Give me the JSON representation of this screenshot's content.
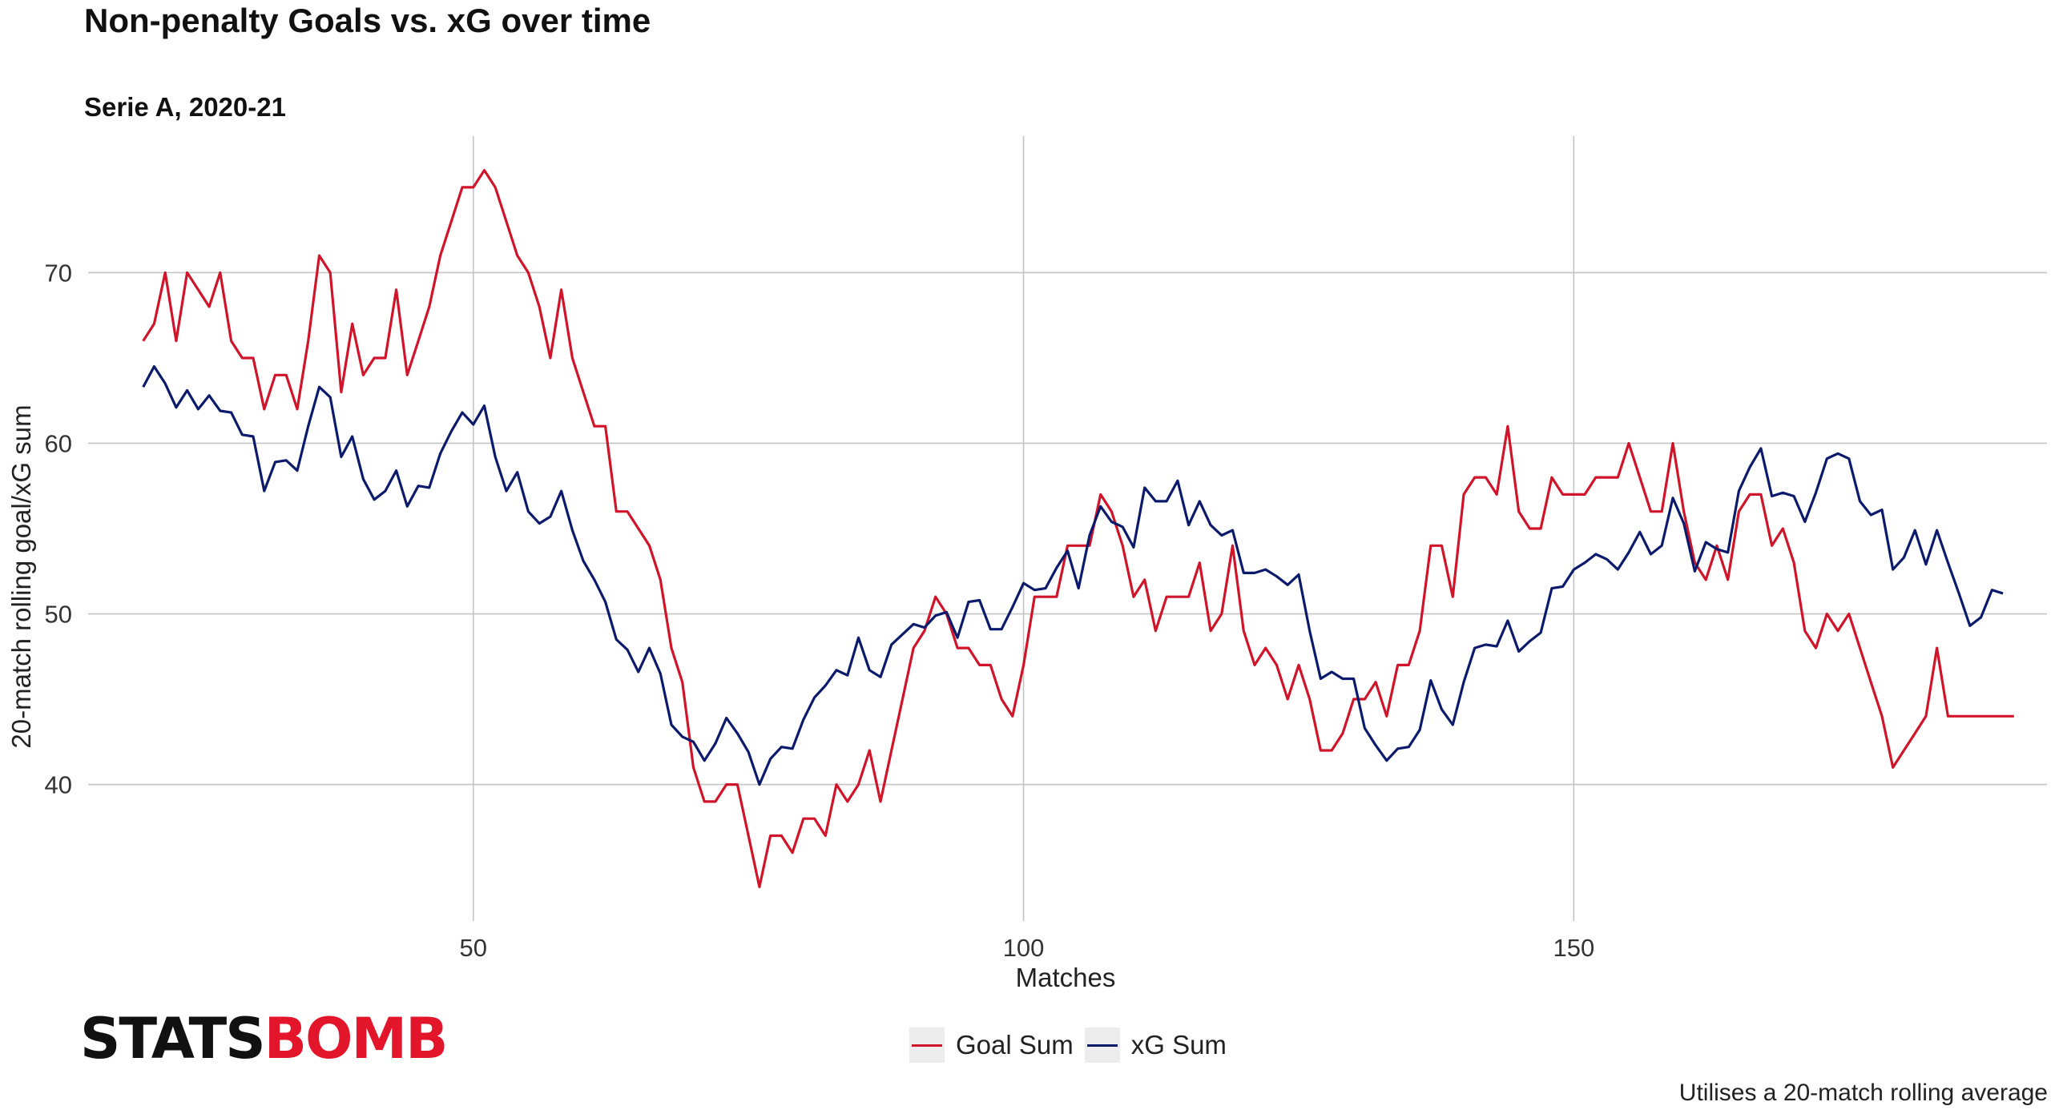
{
  "header": {
    "title": "Non-penalty Goals vs. xG over time",
    "subtitle": "Serie A, 2020-21"
  },
  "logo": {
    "part1": "STATS",
    "part2": "BOMB"
  },
  "caption": "Utilises a 20-match rolling average",
  "colors": {
    "goal": "#d0142a",
    "xg": "#0b1a6b",
    "grid": "#c4c4c4"
  },
  "chart_data": {
    "type": "line",
    "xlabel": "Matches",
    "ylabel": "20-match rolling goal/xG sum",
    "x_start": 20,
    "x_ticks": [
      50,
      100,
      150
    ],
    "y_ticks": [
      40,
      50,
      60,
      70
    ],
    "xlim": [
      15,
      193
    ],
    "ylim": [
      32,
      78
    ],
    "grid": true,
    "legend_position": "bottom",
    "series": [
      {
        "name": "Goal Sum",
        "values": [
          66,
          67,
          70,
          66,
          70,
          69,
          68,
          70,
          66,
          65,
          65,
          62,
          64,
          64,
          62,
          66,
          71,
          70,
          63,
          67,
          64,
          65,
          65,
          69,
          64,
          66,
          68,
          71,
          73,
          75,
          75,
          76,
          75,
          73,
          71,
          70,
          68,
          65,
          69,
          65,
          63,
          61,
          61,
          56,
          56,
          55,
          54,
          52,
          48,
          46,
          41,
          39,
          39,
          40,
          40,
          37,
          34,
          37,
          37,
          36,
          38,
          38,
          37,
          40,
          39,
          40,
          42,
          39,
          42,
          45,
          48,
          49,
          51,
          50,
          48,
          48,
          47,
          47,
          45,
          44,
          47,
          51,
          51,
          51,
          54,
          54,
          54,
          57,
          56,
          54,
          51,
          52,
          49,
          51,
          51,
          51,
          53,
          49,
          50,
          54,
          49,
          47,
          48,
          47,
          45,
          47,
          45,
          42,
          42,
          43,
          45,
          45,
          46,
          44,
          47,
          47,
          49,
          54,
          54,
          51,
          57,
          58,
          58,
          57,
          61,
          56,
          55,
          55,
          58,
          57,
          57,
          57,
          58,
          58,
          58,
          60,
          58,
          56,
          56,
          60,
          56,
          53,
          52,
          54,
          52,
          56,
          57,
          57,
          54,
          55,
          53,
          49,
          48,
          50,
          49,
          50,
          48,
          46,
          44,
          41,
          42,
          43,
          44,
          48,
          44,
          44,
          44,
          44,
          44,
          44,
          44
        ]
      },
      {
        "name": "xG Sum",
        "values": [
          63.3,
          64.5,
          63.5,
          62.1,
          63.1,
          62.0,
          62.8,
          61.9,
          61.8,
          60.5,
          60.4,
          57.2,
          58.9,
          59.0,
          58.4,
          61.0,
          63.3,
          62.7,
          59.2,
          60.4,
          57.9,
          56.7,
          57.2,
          58.4,
          56.3,
          57.5,
          57.4,
          59.4,
          60.7,
          61.8,
          61.1,
          62.2,
          59.2,
          57.2,
          58.3,
          56.0,
          55.3,
          55.7,
          57.2,
          54.9,
          53.1,
          52.0,
          50.7,
          48.5,
          47.9,
          46.6,
          48.0,
          46.5,
          43.5,
          42.8,
          42.5,
          41.4,
          42.4,
          43.9,
          43.0,
          41.9,
          40.0,
          41.5,
          42.2,
          42.1,
          43.8,
          45.1,
          45.8,
          46.7,
          46.4,
          48.6,
          46.7,
          46.3,
          48.2,
          48.8,
          49.4,
          49.2,
          49.9,
          50.1,
          48.6,
          50.7,
          50.8,
          49.1,
          49.1,
          50.4,
          51.8,
          51.4,
          51.5,
          52.7,
          53.7,
          51.5,
          54.6,
          56.3,
          55.4,
          55.1,
          53.9,
          57.4,
          56.6,
          56.6,
          57.8,
          55.2,
          56.6,
          55.2,
          54.6,
          54.9,
          52.4,
          52.4,
          52.6,
          52.2,
          51.7,
          52.3,
          49.0,
          46.2,
          46.6,
          46.2,
          46.2,
          43.3,
          42.3,
          41.4,
          42.1,
          42.2,
          43.2,
          46.1,
          44.4,
          43.5,
          46.0,
          48.0,
          48.2,
          48.1,
          49.6,
          47.8,
          48.4,
          48.9,
          51.5,
          51.6,
          52.6,
          53.0,
          53.5,
          53.2,
          52.6,
          53.6,
          54.8,
          53.5,
          54.0,
          56.8,
          55.3,
          52.5,
          54.2,
          53.8,
          53.6,
          57.2,
          58.6,
          59.7,
          56.9,
          57.1,
          56.9,
          55.4,
          57.1,
          59.1,
          59.4,
          59.1,
          56.6,
          55.8,
          56.1,
          52.6,
          53.3,
          54.9,
          52.9,
          54.9,
          53.0,
          51.2,
          49.3,
          49.8,
          51.4,
          51.2
        ]
      }
    ]
  }
}
